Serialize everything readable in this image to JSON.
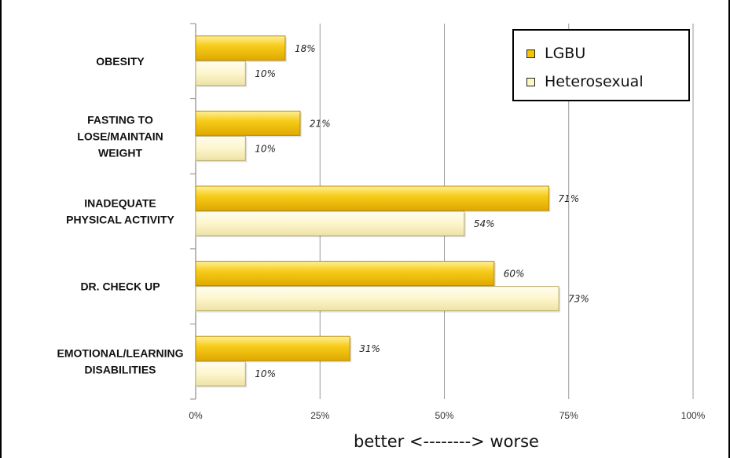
{
  "chart_data": {
    "type": "bar",
    "orientation": "horizontal",
    "categories": [
      [
        "OBESITY"
      ],
      [
        "FASTING TO",
        "LOSE/MAINTAIN",
        "WEIGHT"
      ],
      [
        "INADEQUATE",
        "PHYSICAL ACTIVITY"
      ],
      [
        "DR. CHECK UP"
      ],
      [
        "EMOTIONAL/LEARNING",
        "DISABILITIES"
      ]
    ],
    "series": [
      {
        "name": "LGBU",
        "color": "#f5c400",
        "values": [
          18,
          21,
          71,
          60,
          31
        ],
        "labels": [
          "18%",
          "21%",
          "71%",
          "60%",
          "31%"
        ]
      },
      {
        "name": "Heterosexual",
        "color": "#fdf5c2",
        "values": [
          10,
          10,
          54,
          73,
          10
        ],
        "labels": [
          "10%",
          "10%",
          "54%",
          "73%",
          "10%"
        ]
      }
    ],
    "xlim": [
      0,
      100
    ],
    "xticks": [
      0,
      25,
      50,
      75,
      100
    ],
    "xtick_labels": [
      "0%",
      "25%",
      "50%",
      "75%",
      "100%"
    ],
    "xlabel": "better <--------> worse",
    "title": "",
    "grid": "vertical",
    "legend_position": "top-right"
  }
}
